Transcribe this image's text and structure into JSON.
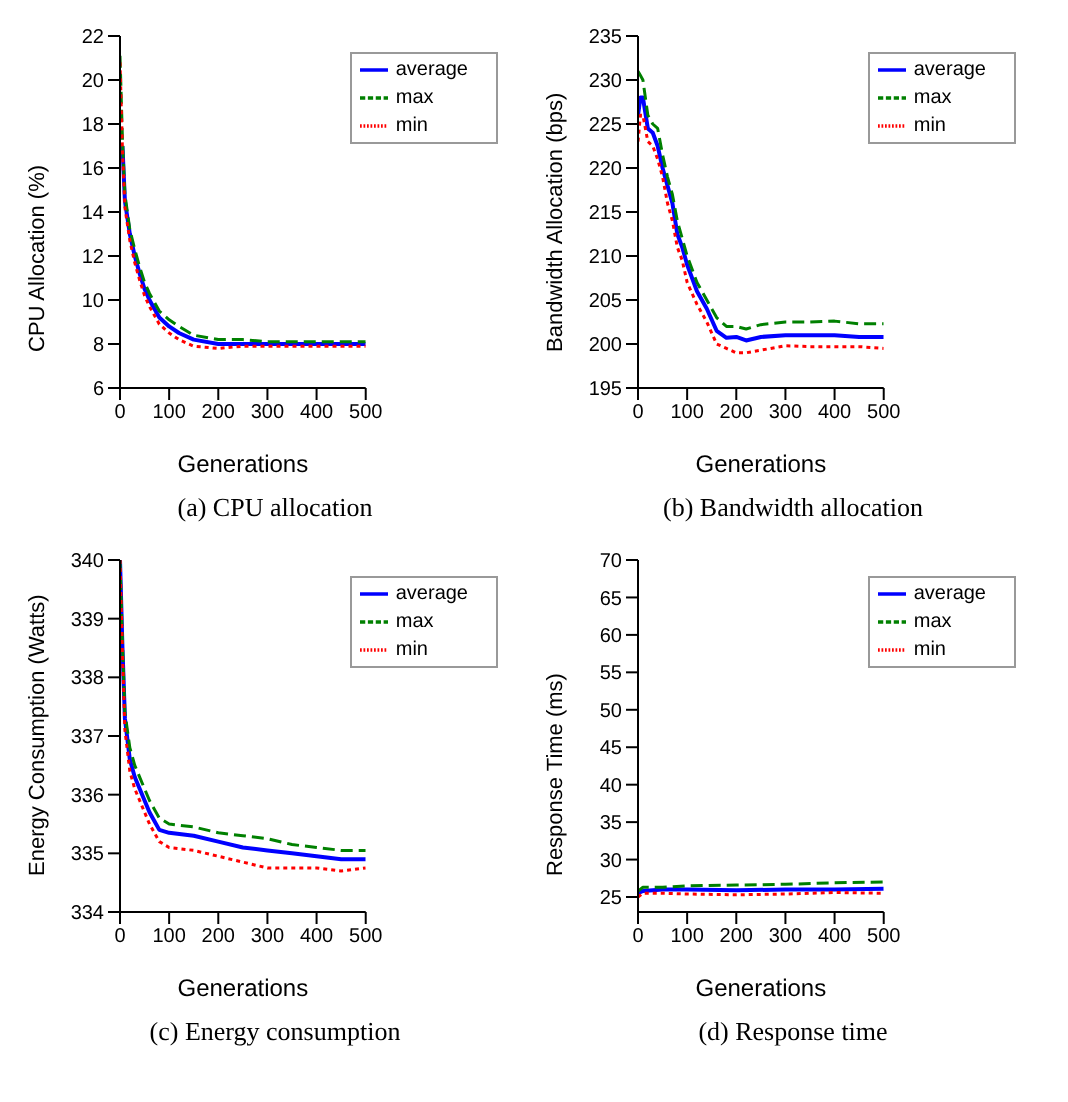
{
  "chart_data": [
    {
      "type": "line",
      "title": "(a)  CPU allocation",
      "xlabel": "Generations",
      "ylabel": "CPU Allocation (%)",
      "xlim": [
        0,
        500
      ],
      "xticks": [
        0,
        100,
        200,
        300,
        400,
        500
      ],
      "ylim": [
        6,
        22
      ],
      "yticks": [
        6,
        8,
        10,
        12,
        14,
        16,
        18,
        20,
        22
      ],
      "grid": false,
      "legend": "top right",
      "series": [
        {
          "name": "average",
          "color": "#0000ff",
          "line_style": "solid",
          "x": [
            5,
            10,
            20,
            30,
            40,
            50,
            60,
            80,
            100,
            120,
            150,
            200,
            250,
            300,
            400,
            500
          ],
          "values": [
            17,
            14.5,
            13,
            12,
            11.2,
            10.5,
            10,
            9.2,
            8.8,
            8.5,
            8.2,
            8,
            8,
            8,
            8,
            8
          ]
        },
        {
          "name": "max",
          "color": "#008000",
          "line_style": "dashed",
          "x": [
            0,
            5,
            10,
            20,
            30,
            40,
            50,
            60,
            80,
            100,
            120,
            150,
            200,
            250,
            300,
            400,
            500
          ],
          "values": [
            21.1,
            17.3,
            14.8,
            13.2,
            12.3,
            11.5,
            10.8,
            10.3,
            9.5,
            9.1,
            8.8,
            8.4,
            8.2,
            8.2,
            8.1,
            8.1,
            8.1
          ]
        },
        {
          "name": "min",
          "color": "#ff0000",
          "line_style": "dotted",
          "x": [
            0,
            5,
            10,
            20,
            30,
            40,
            50,
            60,
            80,
            100,
            120,
            150,
            200,
            250,
            300,
            400,
            500
          ],
          "values": [
            20.8,
            16.8,
            14.2,
            12.7,
            11.7,
            10.9,
            10.2,
            9.7,
            8.9,
            8.5,
            8.2,
            7.9,
            7.8,
            7.9,
            7.9,
            7.9,
            7.9
          ]
        }
      ]
    },
    {
      "type": "line",
      "title": "(b)  Bandwidth allocation",
      "xlabel": "Generations",
      "ylabel": "Bandwidth Allocation (bps)",
      "xlim": [
        0,
        500
      ],
      "xticks": [
        0,
        100,
        200,
        300,
        400,
        500
      ],
      "ylim": [
        195,
        235
      ],
      "yticks": [
        195,
        200,
        205,
        210,
        215,
        220,
        225,
        230,
        235
      ],
      "grid": false,
      "legend": "top right",
      "series": [
        {
          "name": "average",
          "color": "#0000ff",
          "line_style": "solid",
          "x": [
            0,
            5,
            10,
            20,
            30,
            40,
            50,
            60,
            70,
            80,
            90,
            100,
            120,
            140,
            160,
            180,
            200,
            220,
            250,
            300,
            350,
            400,
            450,
            500
          ],
          "values": [
            226,
            228,
            228,
            224.5,
            224,
            222.5,
            220,
            218,
            216,
            212.5,
            211,
            209,
            206,
            204,
            201.5,
            200.7,
            200.8,
            200.4,
            200.8,
            201,
            201,
            201,
            200.8,
            200.8
          ]
        },
        {
          "name": "max",
          "color": "#008000",
          "line_style": "dashed",
          "x": [
            0,
            5,
            10,
            20,
            30,
            40,
            50,
            60,
            70,
            80,
            90,
            100,
            120,
            140,
            160,
            180,
            200,
            220,
            250,
            300,
            350,
            400,
            450,
            500
          ],
          "values": [
            231,
            230.5,
            230,
            226,
            225,
            224.5,
            221.5,
            219,
            217,
            214,
            212,
            210,
            207,
            205,
            203,
            202,
            202,
            201.7,
            202.2,
            202.5,
            202.5,
            202.6,
            202.3,
            202.3
          ]
        },
        {
          "name": "min",
          "color": "#ff0000",
          "line_style": "dotted",
          "x": [
            0,
            5,
            10,
            20,
            30,
            40,
            50,
            60,
            70,
            80,
            90,
            100,
            120,
            140,
            160,
            180,
            200,
            220,
            250,
            300,
            350,
            400,
            450,
            500
          ],
          "values": [
            223,
            226,
            226,
            223,
            222.5,
            221,
            219,
            216,
            214,
            211,
            209.5,
            207,
            204.5,
            202.5,
            200,
            199.5,
            199,
            199,
            199.3,
            199.8,
            199.7,
            199.7,
            199.7,
            199.5
          ]
        }
      ]
    },
    {
      "type": "line",
      "title": "(c)  Energy consumption",
      "xlabel": "Generations",
      "ylabel": "Energy Consumption (Watts)",
      "xlim": [
        0,
        500
      ],
      "xticks": [
        0,
        100,
        200,
        300,
        400,
        500
      ],
      "ylim": [
        334,
        340
      ],
      "yticks": [
        334,
        335,
        336,
        337,
        338,
        339,
        340
      ],
      "grid": false,
      "legend": "top right",
      "series": [
        {
          "name": "average",
          "color": "#0000ff",
          "line_style": "solid",
          "x": [
            0,
            5,
            10,
            20,
            30,
            40,
            50,
            60,
            80,
            100,
            150,
            200,
            250,
            300,
            350,
            400,
            450,
            500
          ],
          "values": [
            340,
            338.5,
            337.3,
            336.6,
            336.3,
            336.1,
            335.9,
            335.7,
            335.4,
            335.35,
            335.3,
            335.2,
            335.1,
            335.05,
            335,
            334.95,
            334.9,
            334.9
          ]
        },
        {
          "name": "max",
          "color": "#008000",
          "line_style": "dashed",
          "x": [
            0,
            5,
            10,
            20,
            30,
            40,
            50,
            60,
            80,
            100,
            150,
            200,
            250,
            300,
            350,
            400,
            450,
            500
          ],
          "values": [
            340,
            338.6,
            337.4,
            336.8,
            336.5,
            336.3,
            336.1,
            335.9,
            335.6,
            335.5,
            335.45,
            335.35,
            335.3,
            335.25,
            335.15,
            335.1,
            335.05,
            335.05
          ]
        },
        {
          "name": "min",
          "color": "#ff0000",
          "line_style": "dotted",
          "x": [
            0,
            5,
            10,
            20,
            30,
            40,
            50,
            60,
            80,
            100,
            150,
            200,
            250,
            300,
            350,
            400,
            450,
            500
          ],
          "values": [
            340,
            338.4,
            337.1,
            336.4,
            336.1,
            335.9,
            335.7,
            335.5,
            335.2,
            335.1,
            335.05,
            334.95,
            334.85,
            334.75,
            334.75,
            334.75,
            334.7,
            334.75
          ]
        }
      ]
    },
    {
      "type": "line",
      "title": "(d)  Response time",
      "xlabel": "Generations",
      "ylabel": "Response Time (ms)",
      "xlim": [
        0,
        500
      ],
      "xticks": [
        0,
        100,
        200,
        300,
        400,
        500
      ],
      "ylim": [
        23,
        70
      ],
      "yticks": [
        25,
        30,
        35,
        40,
        45,
        50,
        55,
        60,
        65,
        70
      ],
      "grid": false,
      "legend": "top right",
      "series": [
        {
          "name": "average",
          "color": "#0000ff",
          "line_style": "solid",
          "x": [
            0,
            10,
            50,
            100,
            200,
            300,
            400,
            500
          ],
          "values": [
            25.5,
            25.8,
            26,
            26,
            25.9,
            26,
            26,
            26.1
          ]
        },
        {
          "name": "max",
          "color": "#008000",
          "line_style": "dashed",
          "x": [
            0,
            10,
            50,
            100,
            200,
            300,
            400,
            500
          ],
          "values": [
            25.8,
            26.3,
            26.3,
            26.5,
            26.6,
            26.7,
            26.9,
            27
          ]
        },
        {
          "name": "min",
          "color": "#ff0000",
          "line_style": "dotted",
          "x": [
            0,
            10,
            50,
            100,
            200,
            300,
            400,
            500
          ],
          "values": [
            25,
            25.5,
            25.5,
            25.4,
            25.3,
            25.4,
            25.6,
            25.5
          ]
        }
      ]
    }
  ]
}
